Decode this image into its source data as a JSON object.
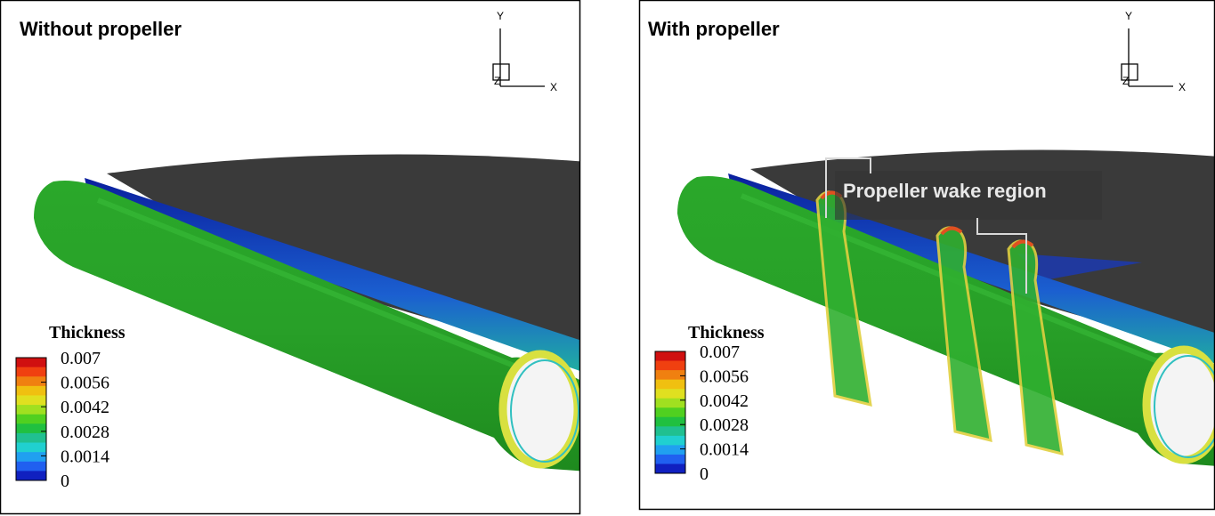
{
  "panels": [
    {
      "title": "Without propeller",
      "legend": {
        "title": "Thickness",
        "ticks": [
          0.007,
          0.0056,
          0.0042,
          0.0028,
          0.0014,
          0
        ]
      },
      "axes": {
        "x": "X",
        "y": "Y",
        "z": "Z"
      }
    },
    {
      "title": "With propeller",
      "legend": {
        "title": "Thickness",
        "ticks": [
          0.007,
          0.0056,
          0.0042,
          0.0028,
          0.0014,
          0
        ]
      },
      "axes": {
        "x": "X",
        "y": "Y",
        "z": "Z"
      },
      "annotation": "Propeller wake region"
    }
  ]
}
